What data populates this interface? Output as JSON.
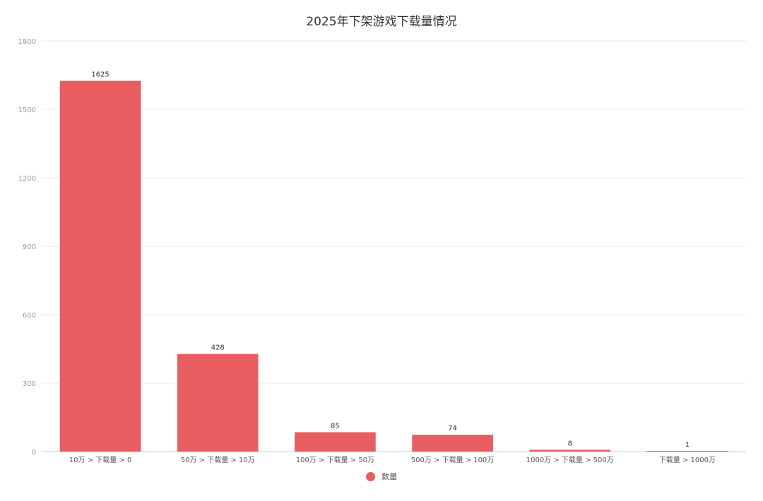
{
  "chart_data": {
    "type": "bar",
    "title": "2025年下架游戏下载量情况",
    "categories": [
      "10万 > 下载量 > 0",
      "50万 > 下载量 > 10万",
      "100万 > 下载量 > 50万",
      "500万 > 下载量 > 100万",
      "1000万 > 下载量 > 500万",
      "下载量 > 1000万"
    ],
    "series": [
      {
        "name": "数量",
        "values": [
          1625,
          428,
          85,
          74,
          8,
          1
        ],
        "color": "#e85e60"
      }
    ],
    "data_labels": [
      "1625",
      "428",
      "85",
      "74",
      "8",
      "1"
    ],
    "ylim": [
      0,
      1800
    ],
    "yticks": [
      0,
      300,
      600,
      900,
      1200,
      1500,
      1800
    ],
    "xlabel": "",
    "ylabel": "",
    "grid": true,
    "legend_position": "bottom-center"
  }
}
